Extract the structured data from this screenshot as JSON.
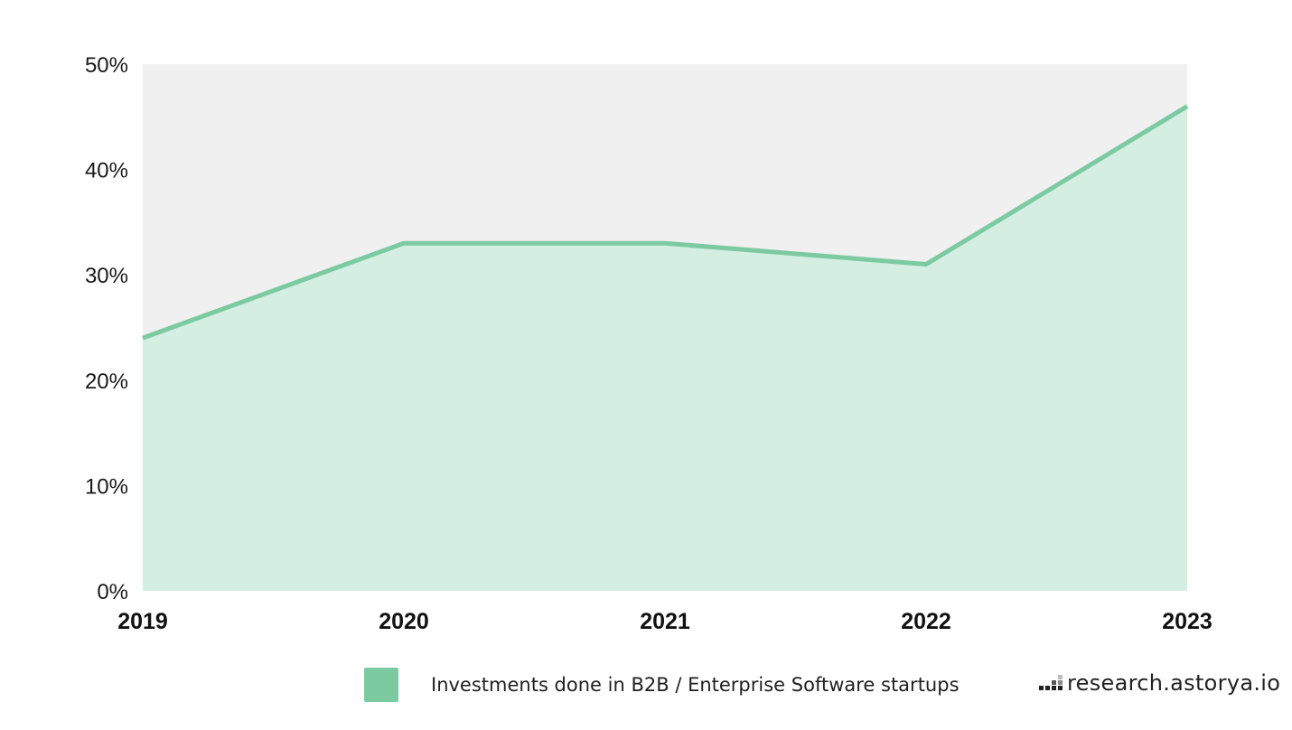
{
  "chart_data": {
    "type": "area",
    "title": "",
    "xlabel": "",
    "ylabel": "",
    "categories": [
      "2019",
      "2020",
      "2021",
      "2022",
      "2023"
    ],
    "series": [
      {
        "name": "Investments done in B2B / Enterprise Software startups",
        "values": [
          24,
          33,
          33,
          31,
          46
        ]
      }
    ],
    "ylim": [
      0,
      50
    ],
    "yticks": [
      0,
      10,
      20,
      30,
      40,
      50
    ],
    "ytick_labels": [
      "0%",
      "10%",
      "20%",
      "30%",
      "40%",
      "50%"
    ],
    "grid": false,
    "legend_position": "bottom",
    "colors": {
      "line": "#7ccaa2",
      "fill": "#d4eee2",
      "plot_background": "#f0f0f0",
      "legend_swatch": "#7ccaa2"
    }
  },
  "legend": {
    "label": "Investments done in B2B / Enterprise Software startups"
  },
  "branding": {
    "text": "research.astorya.io",
    "logo_icon": "bar-blocks-icon"
  }
}
